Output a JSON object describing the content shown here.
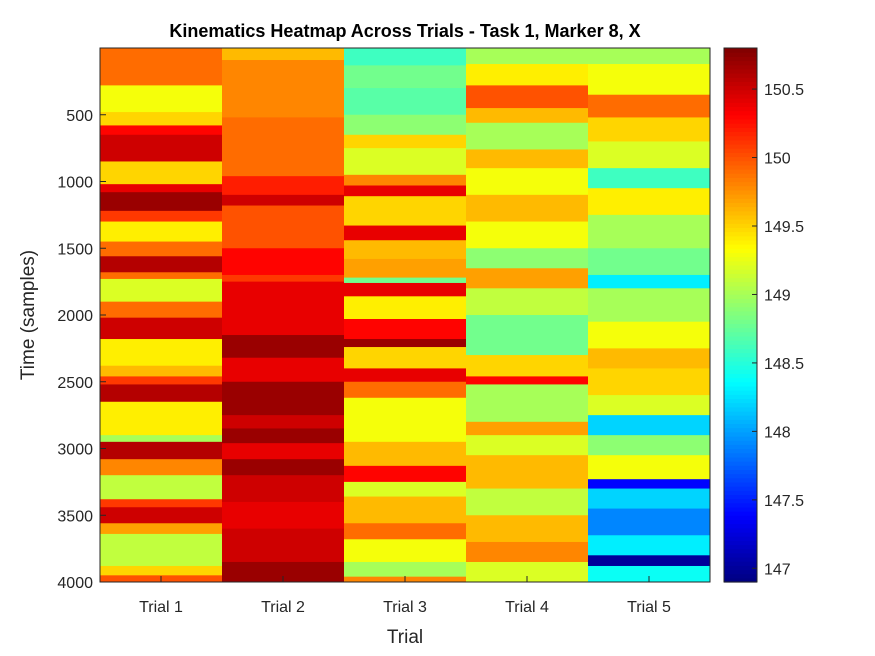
{
  "chart_data": {
    "type": "heatmap",
    "title": "Kinematics Heatmap Across Trials - Task 1, Marker 8, X",
    "xlabel": "Trial",
    "ylabel": "Time (samples)",
    "categories": [
      "Trial 1",
      "Trial 2",
      "Trial 3",
      "Trial 4",
      "Trial 5"
    ],
    "ylim": [
      0,
      4000
    ],
    "y_reversed": true,
    "yticks": [
      "500",
      "1000",
      "1500",
      "2000",
      "2500",
      "3000",
      "3500",
      "4000"
    ],
    "colormap": "jet",
    "color_range": [
      146.9,
      150.8
    ],
    "colorbar_ticks": [
      "147",
      "147.5",
      "148",
      "148.5",
      "149",
      "149.5",
      "150",
      "150.5"
    ],
    "series": [
      {
        "bands": [
          {
            "start": 0,
            "end": 280,
            "value": 149.9
          },
          {
            "start": 280,
            "end": 480,
            "value": 149.3
          },
          {
            "start": 480,
            "end": 580,
            "value": 149.5
          },
          {
            "start": 580,
            "end": 650,
            "value": 150.3
          },
          {
            "start": 650,
            "end": 850,
            "value": 150.5
          },
          {
            "start": 850,
            "end": 1020,
            "value": 149.5
          },
          {
            "start": 1020,
            "end": 1080,
            "value": 150.4
          },
          {
            "start": 1080,
            "end": 1220,
            "value": 150.7
          },
          {
            "start": 1220,
            "end": 1300,
            "value": 150.1
          },
          {
            "start": 1300,
            "end": 1450,
            "value": 149.4
          },
          {
            "start": 1450,
            "end": 1560,
            "value": 149.9
          },
          {
            "start": 1560,
            "end": 1680,
            "value": 150.6
          },
          {
            "start": 1680,
            "end": 1730,
            "value": 149.9
          },
          {
            "start": 1730,
            "end": 1900,
            "value": 149.2
          },
          {
            "start": 1900,
            "end": 2020,
            "value": 149.9
          },
          {
            "start": 2020,
            "end": 2180,
            "value": 150.5
          },
          {
            "start": 2180,
            "end": 2380,
            "value": 149.4
          },
          {
            "start": 2380,
            "end": 2460,
            "value": 149.6
          },
          {
            "start": 2460,
            "end": 2520,
            "value": 150.1
          },
          {
            "start": 2520,
            "end": 2650,
            "value": 150.6
          },
          {
            "start": 2650,
            "end": 2900,
            "value": 149.4
          },
          {
            "start": 2900,
            "end": 2950,
            "value": 149.0
          },
          {
            "start": 2950,
            "end": 3080,
            "value": 150.6
          },
          {
            "start": 3080,
            "end": 3200,
            "value": 149.8
          },
          {
            "start": 3200,
            "end": 3380,
            "value": 149.1
          },
          {
            "start": 3380,
            "end": 3440,
            "value": 150.1
          },
          {
            "start": 3440,
            "end": 3560,
            "value": 150.5
          },
          {
            "start": 3560,
            "end": 3640,
            "value": 149.7
          },
          {
            "start": 3640,
            "end": 3880,
            "value": 149.1
          },
          {
            "start": 3880,
            "end": 3950,
            "value": 149.5
          },
          {
            "start": 3950,
            "end": 4000,
            "value": 150.0
          }
        ]
      },
      {
        "bands": [
          {
            "start": 0,
            "end": 90,
            "value": 149.6
          },
          {
            "start": 90,
            "end": 520,
            "value": 149.8
          },
          {
            "start": 520,
            "end": 960,
            "value": 149.9
          },
          {
            "start": 960,
            "end": 1100,
            "value": 150.2
          },
          {
            "start": 1100,
            "end": 1180,
            "value": 150.5
          },
          {
            "start": 1180,
            "end": 1500,
            "value": 150.0
          },
          {
            "start": 1500,
            "end": 1700,
            "value": 150.3
          },
          {
            "start": 1700,
            "end": 1750,
            "value": 150.1
          },
          {
            "start": 1750,
            "end": 2150,
            "value": 150.4
          },
          {
            "start": 2150,
            "end": 2320,
            "value": 150.7
          },
          {
            "start": 2320,
            "end": 2500,
            "value": 150.4
          },
          {
            "start": 2500,
            "end": 2750,
            "value": 150.7
          },
          {
            "start": 2750,
            "end": 2850,
            "value": 150.5
          },
          {
            "start": 2850,
            "end": 2960,
            "value": 150.7
          },
          {
            "start": 2960,
            "end": 3080,
            "value": 150.4
          },
          {
            "start": 3080,
            "end": 3200,
            "value": 150.7
          },
          {
            "start": 3200,
            "end": 3400,
            "value": 150.5
          },
          {
            "start": 3400,
            "end": 3600,
            "value": 150.4
          },
          {
            "start": 3600,
            "end": 3850,
            "value": 150.5
          },
          {
            "start": 3850,
            "end": 4000,
            "value": 150.7
          }
        ]
      },
      {
        "bands": [
          {
            "start": 0,
            "end": 130,
            "value": 148.6
          },
          {
            "start": 130,
            "end": 300,
            "value": 148.8
          },
          {
            "start": 300,
            "end": 500,
            "value": 148.7
          },
          {
            "start": 500,
            "end": 650,
            "value": 148.9
          },
          {
            "start": 650,
            "end": 750,
            "value": 149.5
          },
          {
            "start": 750,
            "end": 950,
            "value": 149.2
          },
          {
            "start": 950,
            "end": 1030,
            "value": 149.8
          },
          {
            "start": 1030,
            "end": 1110,
            "value": 150.4
          },
          {
            "start": 1110,
            "end": 1330,
            "value": 149.5
          },
          {
            "start": 1330,
            "end": 1440,
            "value": 150.4
          },
          {
            "start": 1440,
            "end": 1580,
            "value": 149.6
          },
          {
            "start": 1580,
            "end": 1720,
            "value": 149.7
          },
          {
            "start": 1720,
            "end": 1760,
            "value": 148.8
          },
          {
            "start": 1760,
            "end": 1860,
            "value": 150.4
          },
          {
            "start": 1860,
            "end": 2030,
            "value": 149.4
          },
          {
            "start": 2030,
            "end": 2180,
            "value": 150.3
          },
          {
            "start": 2180,
            "end": 2240,
            "value": 150.7
          },
          {
            "start": 2240,
            "end": 2400,
            "value": 149.5
          },
          {
            "start": 2400,
            "end": 2500,
            "value": 150.4
          },
          {
            "start": 2500,
            "end": 2620,
            "value": 149.9
          },
          {
            "start": 2620,
            "end": 2950,
            "value": 149.3
          },
          {
            "start": 2950,
            "end": 3130,
            "value": 149.6
          },
          {
            "start": 3130,
            "end": 3250,
            "value": 150.3
          },
          {
            "start": 3250,
            "end": 3360,
            "value": 149.2
          },
          {
            "start": 3360,
            "end": 3560,
            "value": 149.6
          },
          {
            "start": 3560,
            "end": 3680,
            "value": 149.9
          },
          {
            "start": 3680,
            "end": 3850,
            "value": 149.3
          },
          {
            "start": 3850,
            "end": 3960,
            "value": 149.0
          },
          {
            "start": 3960,
            "end": 4000,
            "value": 149.8
          }
        ]
      },
      {
        "bands": [
          {
            "start": 0,
            "end": 120,
            "value": 149.0
          },
          {
            "start": 120,
            "end": 280,
            "value": 149.4
          },
          {
            "start": 280,
            "end": 450,
            "value": 150.0
          },
          {
            "start": 450,
            "end": 560,
            "value": 149.6
          },
          {
            "start": 560,
            "end": 760,
            "value": 149.0
          },
          {
            "start": 760,
            "end": 900,
            "value": 149.6
          },
          {
            "start": 900,
            "end": 1100,
            "value": 149.3
          },
          {
            "start": 1100,
            "end": 1300,
            "value": 149.6
          },
          {
            "start": 1300,
            "end": 1500,
            "value": 149.3
          },
          {
            "start": 1500,
            "end": 1650,
            "value": 148.9
          },
          {
            "start": 1650,
            "end": 1800,
            "value": 149.7
          },
          {
            "start": 1800,
            "end": 2000,
            "value": 149.1
          },
          {
            "start": 2000,
            "end": 2300,
            "value": 148.8
          },
          {
            "start": 2300,
            "end": 2460,
            "value": 149.5
          },
          {
            "start": 2460,
            "end": 2520,
            "value": 150.3
          },
          {
            "start": 2520,
            "end": 2800,
            "value": 149.0
          },
          {
            "start": 2800,
            "end": 2900,
            "value": 149.7
          },
          {
            "start": 2900,
            "end": 3050,
            "value": 149.2
          },
          {
            "start": 3050,
            "end": 3300,
            "value": 149.6
          },
          {
            "start": 3300,
            "end": 3500,
            "value": 149.1
          },
          {
            "start": 3500,
            "end": 3700,
            "value": 149.6
          },
          {
            "start": 3700,
            "end": 3850,
            "value": 149.8
          },
          {
            "start": 3850,
            "end": 4000,
            "value": 149.2
          }
        ]
      },
      {
        "bands": [
          {
            "start": 0,
            "end": 120,
            "value": 149.0
          },
          {
            "start": 120,
            "end": 350,
            "value": 149.3
          },
          {
            "start": 350,
            "end": 520,
            "value": 149.9
          },
          {
            "start": 520,
            "end": 700,
            "value": 149.5
          },
          {
            "start": 700,
            "end": 900,
            "value": 149.2
          },
          {
            "start": 900,
            "end": 1050,
            "value": 148.6
          },
          {
            "start": 1050,
            "end": 1250,
            "value": 149.4
          },
          {
            "start": 1250,
            "end": 1500,
            "value": 149.0
          },
          {
            "start": 1500,
            "end": 1700,
            "value": 148.8
          },
          {
            "start": 1700,
            "end": 1800,
            "value": 148.3
          },
          {
            "start": 1800,
            "end": 2050,
            "value": 149.0
          },
          {
            "start": 2050,
            "end": 2250,
            "value": 149.3
          },
          {
            "start": 2250,
            "end": 2400,
            "value": 149.6
          },
          {
            "start": 2400,
            "end": 2600,
            "value": 149.5
          },
          {
            "start": 2600,
            "end": 2750,
            "value": 149.2
          },
          {
            "start": 2750,
            "end": 2900,
            "value": 148.2
          },
          {
            "start": 2900,
            "end": 3050,
            "value": 148.9
          },
          {
            "start": 3050,
            "end": 3230,
            "value": 149.3
          },
          {
            "start": 3230,
            "end": 3300,
            "value": 147.4
          },
          {
            "start": 3300,
            "end": 3450,
            "value": 148.2
          },
          {
            "start": 3450,
            "end": 3650,
            "value": 147.9
          },
          {
            "start": 3650,
            "end": 3800,
            "value": 148.3
          },
          {
            "start": 3800,
            "end": 3880,
            "value": 147.0
          },
          {
            "start": 3880,
            "end": 4000,
            "value": 148.4
          }
        ]
      }
    ]
  }
}
